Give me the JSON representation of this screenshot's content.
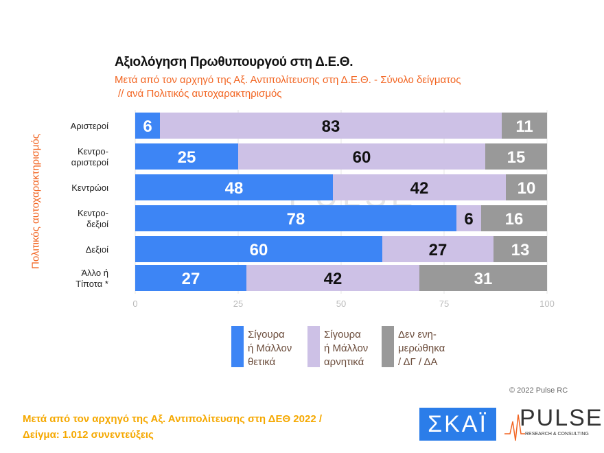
{
  "title": "Αξιολόγηση Πρωθυπουργού στη Δ.Ε.Θ.",
  "subtitle_line1": "Μετά από τον αρχηγό της Αξ. Αντιπολίτευσης στη Δ.Ε.Θ.  -  Σύνολο δείγματος",
  "subtitle_line2": "// ανά Πολιτικός αυτοχαρακτηρισμός",
  "copyright": "© 2022 Pulse RC",
  "footer_line1": "Μετά από τον αρχηγό της Αξ. Αντιπολίτευσης στη ΔΕΘ  2022  /",
  "footer_line2": "Δείγμα:  1.012 συνεντεύξεις",
  "logos": {
    "skai": "ΣΚΑΪ",
    "pulse": "PULSE",
    "pulse_tagline": "RESEARCH & CONSULTING"
  },
  "chart_data": {
    "type": "bar",
    "orientation": "horizontal",
    "stacked": true,
    "ylabel": "Πολιτικός αυτοχαρακτηρισμός",
    "categories": [
      [
        "Αριστεροί"
      ],
      [
        "Κεντρο-",
        "αριστεροί"
      ],
      [
        "Κεντρώοι"
      ],
      [
        "Κεντρο-",
        "δεξιοί"
      ],
      [
        "Δεξιοί"
      ],
      [
        "Άλλο ή",
        "Τίποτα *"
      ]
    ],
    "xlim": [
      0,
      100
    ],
    "xticks": [
      "0",
      "25",
      "50",
      "75",
      "100"
    ],
    "series": [
      {
        "name": [
          "Σίγουρα",
          "ή Μάλλον",
          "θετικά"
        ],
        "color": "#3d85f5",
        "label_color": "#ffffff",
        "values": [
          6,
          25,
          48,
          78,
          60,
          27
        ]
      },
      {
        "name": [
          "Σίγουρα",
          "ή Μάλλον",
          "αρνητικά"
        ],
        "color": "#cdc1e6",
        "label_color": "#111111",
        "values": [
          83,
          60,
          42,
          6,
          27,
          42
        ]
      },
      {
        "name": [
          "Δεν ενη-",
          "μερώθηκα",
          "/ ΔΓ / ΔΑ"
        ],
        "color": "#999999",
        "label_color": "#ffffff",
        "values": [
          11,
          15,
          10,
          16,
          13,
          31
        ]
      }
    ],
    "legend": "bottom"
  }
}
